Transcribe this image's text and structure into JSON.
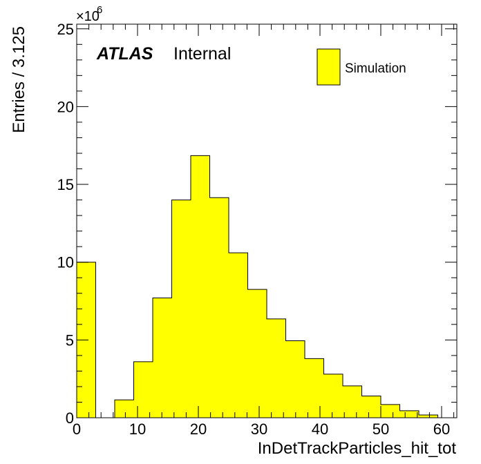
{
  "chart_data": {
    "type": "bar",
    "xlabel": "InDetTrackParticles_hit_tot",
    "ylabel": "Entries / 3.125",
    "y_multiplier": "×10",
    "y_multiplier_exp": "6",
    "xlim": [
      0,
      62.5
    ],
    "ylim": [
      0,
      25.3
    ],
    "bin_width": 3.125,
    "x_ticks": [
      0,
      10,
      20,
      30,
      40,
      50,
      60
    ],
    "y_ticks": [
      0,
      5,
      10,
      15,
      20,
      25
    ],
    "bins": [
      {
        "x0": 0,
        "x1": 3.125,
        "value": 10.0
      },
      {
        "x0": 3.125,
        "x1": 6.25,
        "value": 0
      },
      {
        "x0": 6.25,
        "x1": 9.375,
        "value": 1.15
      },
      {
        "x0": 9.375,
        "x1": 12.5,
        "value": 3.6
      },
      {
        "x0": 12.5,
        "x1": 15.625,
        "value": 7.7
      },
      {
        "x0": 15.625,
        "x1": 18.75,
        "value": 14.0
      },
      {
        "x0": 18.75,
        "x1": 21.875,
        "value": 16.85
      },
      {
        "x0": 21.875,
        "x1": 25.0,
        "value": 14.15
      },
      {
        "x0": 25.0,
        "x1": 28.125,
        "value": 10.6
      },
      {
        "x0": 28.125,
        "x1": 31.25,
        "value": 8.25
      },
      {
        "x0": 31.25,
        "x1": 34.375,
        "value": 6.35
      },
      {
        "x0": 34.375,
        "x1": 37.5,
        "value": 4.95
      },
      {
        "x0": 37.5,
        "x1": 40.625,
        "value": 3.8
      },
      {
        "x0": 40.625,
        "x1": 43.75,
        "value": 2.8
      },
      {
        "x0": 43.75,
        "x1": 46.875,
        "value": 2.05
      },
      {
        "x0": 46.875,
        "x1": 50.0,
        "value": 1.4
      },
      {
        "x0": 50.0,
        "x1": 53.125,
        "value": 0.85
      },
      {
        "x0": 53.125,
        "x1": 56.25,
        "value": 0.45
      },
      {
        "x0": 56.25,
        "x1": 59.375,
        "value": 0.18
      },
      {
        "x0": 59.375,
        "x1": 62.5,
        "value": 0
      }
    ],
    "fill_color": "#ffff00",
    "line_color": "#000000",
    "legend": {
      "entries": [
        "Simulation"
      ],
      "placement": "top-right"
    },
    "annotations": {
      "experiment": "ATLAS",
      "status": "Internal"
    },
    "grid": false
  }
}
